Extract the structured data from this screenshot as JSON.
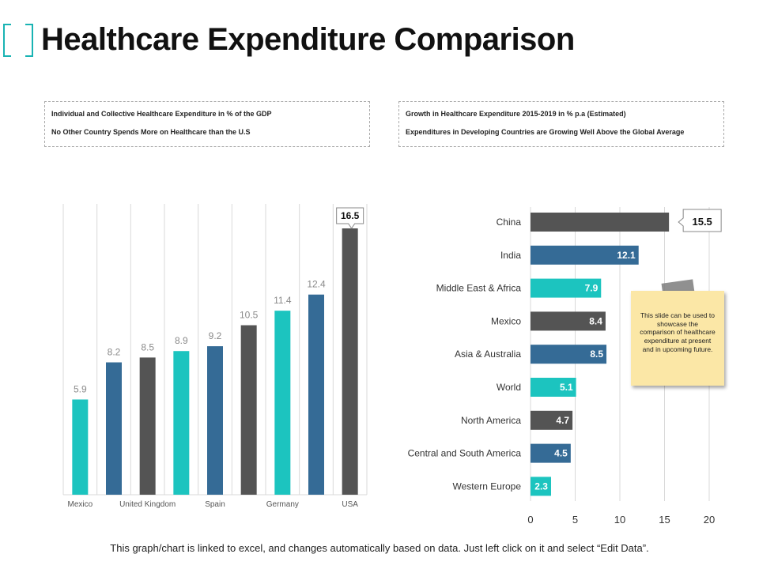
{
  "title": "Healthcare Expenditure Comparison",
  "info_left": {
    "line1": "Individual and Collective Healthcare Expenditure in % of the GDP",
    "line2": "No Other Country  Spends More on Healthcare than the U.S"
  },
  "info_right": {
    "line1": "Growth in Healthcare Expenditure 2015-2019 in % p.a (Estimated)",
    "line2": "Expenditures in Developing Countries are Growing Well Above the Global Average"
  },
  "note_text": "This slide can be used to showcase the comparison of healthcare expenditure at present and in upcoming future.",
  "footer_text": "This graph/chart is linked to excel, and changes automatically based on data.  Just left click on it and select “Edit Data”.",
  "colors": {
    "teal": "#1cc4bf",
    "blue": "#356b96",
    "gray": "#545454",
    "gridline": "#d9d9d9",
    "accent": "#19b3b3"
  },
  "chart_data": [
    {
      "type": "bar",
      "orientation": "vertical",
      "title": "Individual and Collective Healthcare Expenditure in % of the GDP",
      "categories": [
        "Mexico",
        "",
        "United Kingdom",
        "",
        "Spain",
        "",
        "Germany",
        "",
        "USA"
      ],
      "values": [
        5.9,
        8.2,
        8.5,
        8.9,
        9.2,
        10.5,
        11.4,
        12.4,
        16.5
      ],
      "bar_colors": [
        "#1cc4bf",
        "#356b96",
        "#545454",
        "#1cc4bf",
        "#356b96",
        "#545454",
        "#1cc4bf",
        "#356b96",
        "#545454"
      ],
      "highlight": {
        "index": 8,
        "label": "16.5"
      },
      "ylim": [
        0,
        18
      ],
      "grid": true
    },
    {
      "type": "bar",
      "orientation": "horizontal",
      "title": "Growth in Healthcare Expenditure 2015-2019 in % p.a (Estimated)",
      "categories": [
        "China",
        "India",
        "Middle East & Africa",
        "Mexico",
        "Asia & Australia",
        "World",
        "North America",
        "Central and South America",
        "Western Europe"
      ],
      "values": [
        15.5,
        12.1,
        7.9,
        8.4,
        8.5,
        5.1,
        4.7,
        4.5,
        2.3
      ],
      "bar_colors": [
        "#545454",
        "#356b96",
        "#1cc4bf",
        "#545454",
        "#356b96",
        "#1cc4bf",
        "#545454",
        "#356b96",
        "#1cc4bf"
      ],
      "highlight": {
        "index": 0,
        "label": "15.5"
      },
      "xlim": [
        0,
        20
      ],
      "xticks": [
        0,
        5,
        10,
        15,
        20
      ],
      "grid": true
    }
  ]
}
